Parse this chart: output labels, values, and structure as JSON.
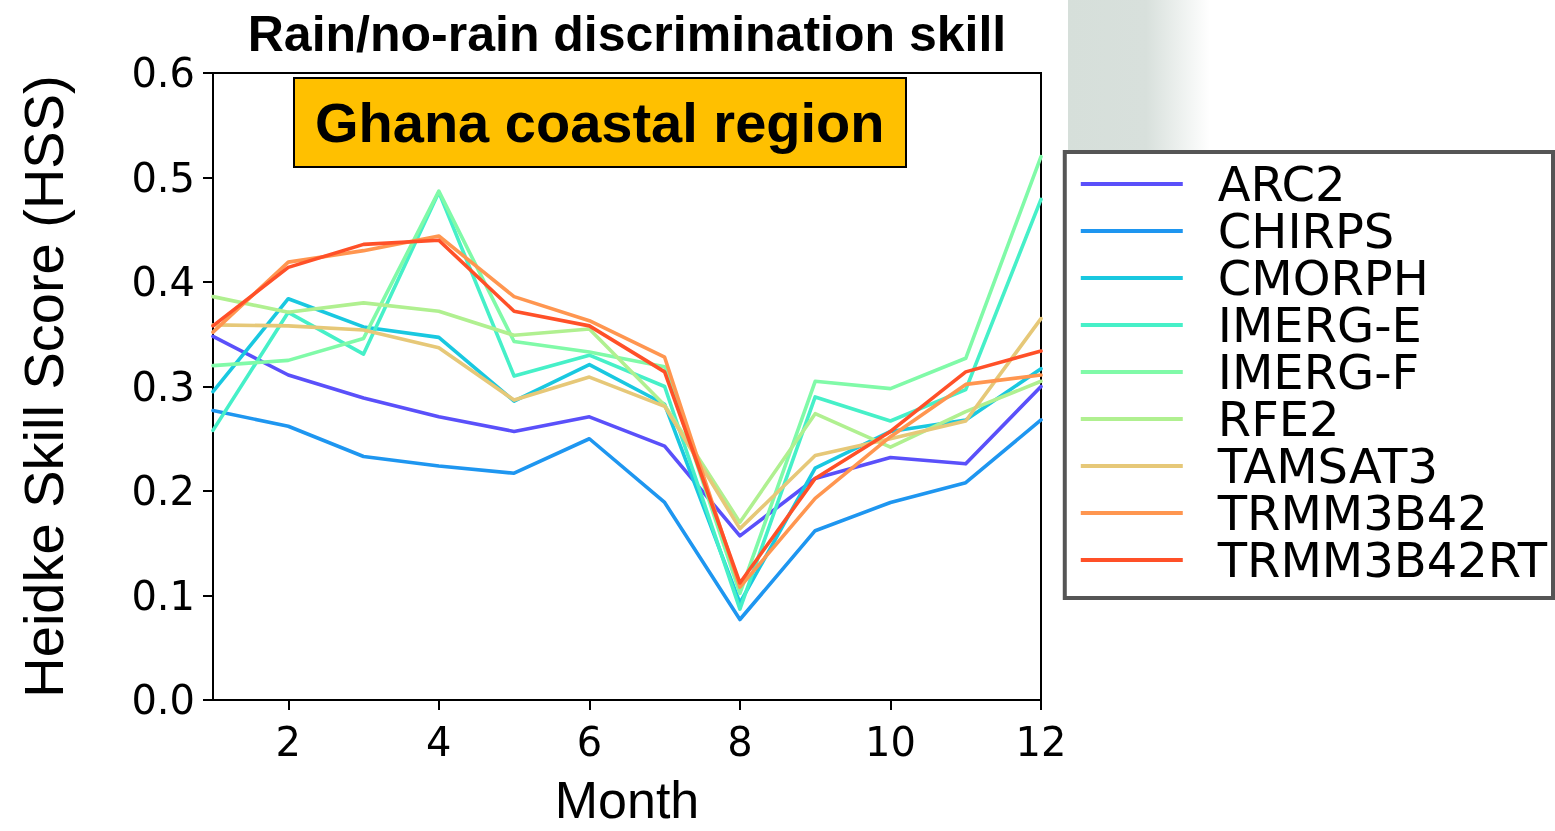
{
  "chart_data": {
    "type": "line",
    "title": "Rain/no-rain discrimination skill",
    "xlabel": "Month",
    "ylabel": "Heidke Skill Score (HSS)",
    "annotations": [
      "Ghana coastal region"
    ],
    "x": [
      1,
      2,
      3,
      4,
      5,
      6,
      7,
      8,
      9,
      10,
      11,
      12
    ],
    "series": [
      {
        "name": "ARC2",
        "color": "#5a50fa",
        "values": [
          0.348,
          0.311,
          0.289,
          0.271,
          0.257,
          0.271,
          0.243,
          0.157,
          0.212,
          0.232,
          0.226,
          0.3
        ]
      },
      {
        "name": "CHIRPS",
        "color": "#1e96f0",
        "values": [
          0.277,
          0.262,
          0.233,
          0.224,
          0.217,
          0.25,
          0.189,
          0.077,
          0.162,
          0.189,
          0.208,
          0.268
        ]
      },
      {
        "name": "CMORPH",
        "color": "#19c8e0",
        "values": [
          0.295,
          0.384,
          0.357,
          0.347,
          0.286,
          0.321,
          0.283,
          0.093,
          0.222,
          0.257,
          0.268,
          0.317
        ]
      },
      {
        "name": "IMERG-E",
        "color": "#46f0c8",
        "values": [
          0.258,
          0.371,
          0.331,
          0.486,
          0.31,
          0.33,
          0.3,
          0.087,
          0.29,
          0.267,
          0.297,
          0.479
        ]
      },
      {
        "name": "IMERG-F",
        "color": "#80faa8",
        "values": [
          0.32,
          0.325,
          0.346,
          0.487,
          0.343,
          0.333,
          0.319,
          0.102,
          0.305,
          0.298,
          0.327,
          0.52
        ]
      },
      {
        "name": "RFE2",
        "color": "#b0f090",
        "values": [
          0.386,
          0.371,
          0.38,
          0.372,
          0.349,
          0.355,
          0.282,
          0.17,
          0.274,
          0.242,
          0.276,
          0.305
        ]
      },
      {
        "name": "TAMSAT3",
        "color": "#e6c878",
        "values": [
          0.359,
          0.358,
          0.354,
          0.337,
          0.287,
          0.309,
          0.281,
          0.164,
          0.234,
          0.25,
          0.267,
          0.365
        ]
      },
      {
        "name": "TRMM3B42",
        "color": "#ff9650",
        "values": [
          0.352,
          0.419,
          0.43,
          0.444,
          0.386,
          0.363,
          0.328,
          0.108,
          0.193,
          0.252,
          0.302,
          0.311
        ]
      },
      {
        "name": "TRMM3B42RT",
        "color": "#ff5028",
        "values": [
          0.358,
          0.414,
          0.436,
          0.44,
          0.372,
          0.358,
          0.314,
          0.112,
          0.212,
          0.257,
          0.314,
          0.334
        ]
      }
    ],
    "xlim": [
      1,
      12
    ],
    "xticks": [
      2,
      4,
      6,
      8,
      10,
      12
    ],
    "ylim": [
      0,
      0.6
    ],
    "yticks": [
      {
        "value": 0,
        "label": "0.0"
      },
      0.1,
      0.2,
      0.3,
      0.4,
      0.5,
      0.6
    ],
    "grid": false,
    "legend": "right",
    "marker": "none",
    "line_style": "solid"
  }
}
